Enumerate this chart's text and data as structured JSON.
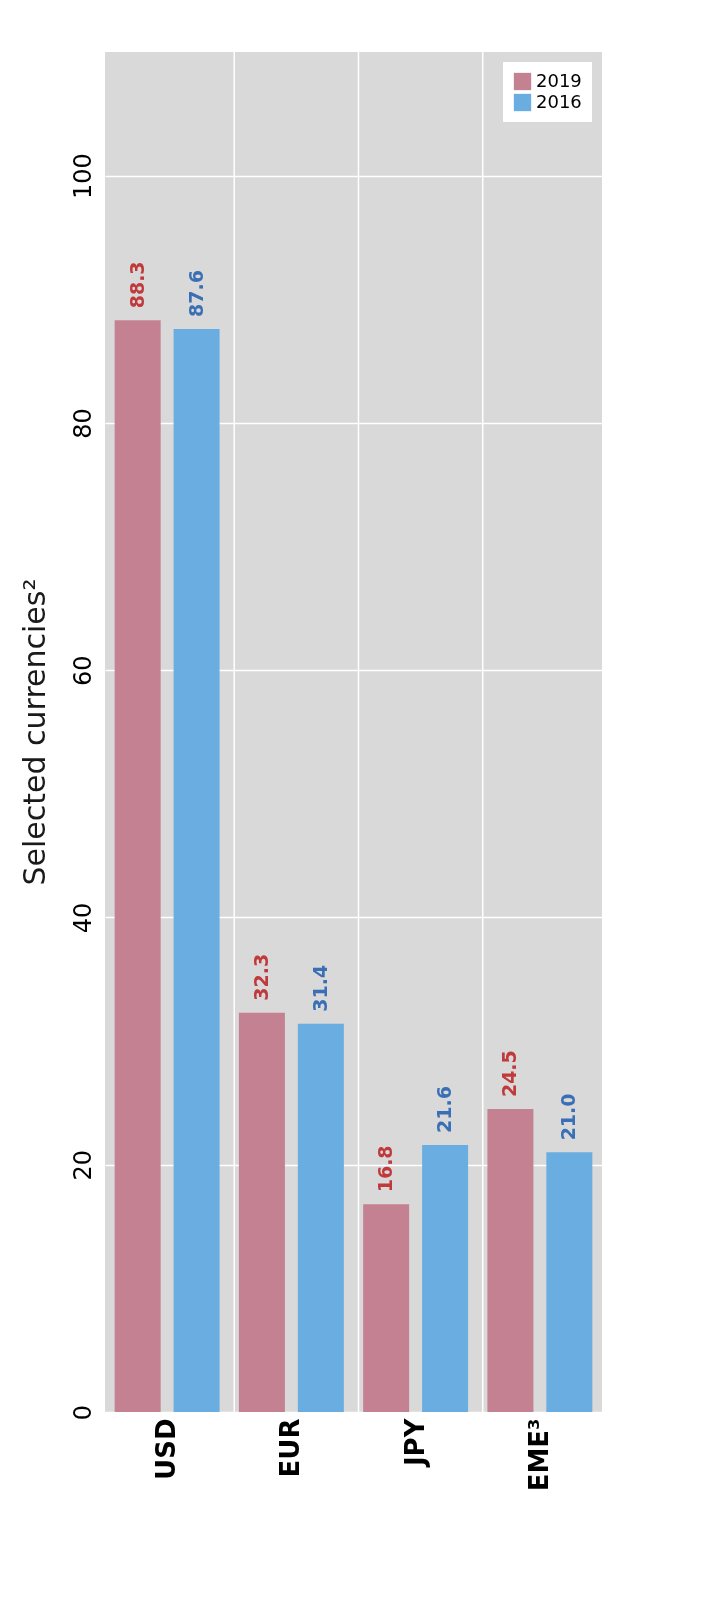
{
  "chart_data": {
    "type": "bar",
    "title": "Selected currencies²",
    "categories": [
      "USD",
      "EUR",
      "JPY",
      "EME³"
    ],
    "series": [
      {
        "name": "2019",
        "color": "#c48191",
        "values": [
          88.3,
          32.3,
          16.8,
          24.5
        ],
        "value_labels": [
          "88.3",
          "32.3",
          "16.8",
          "24.5"
        ]
      },
      {
        "name": "2016",
        "color": "#6aade0",
        "values": [
          87.6,
          31.4,
          21.6,
          21.0
        ],
        "value_labels": [
          "87.6",
          "31.4",
          "21.6",
          "21.0"
        ]
      }
    ],
    "ylim": [
      0,
      110
    ],
    "yticks": [
      0,
      20,
      40,
      60,
      80,
      100
    ],
    "grid": true,
    "legend": "top right"
  }
}
